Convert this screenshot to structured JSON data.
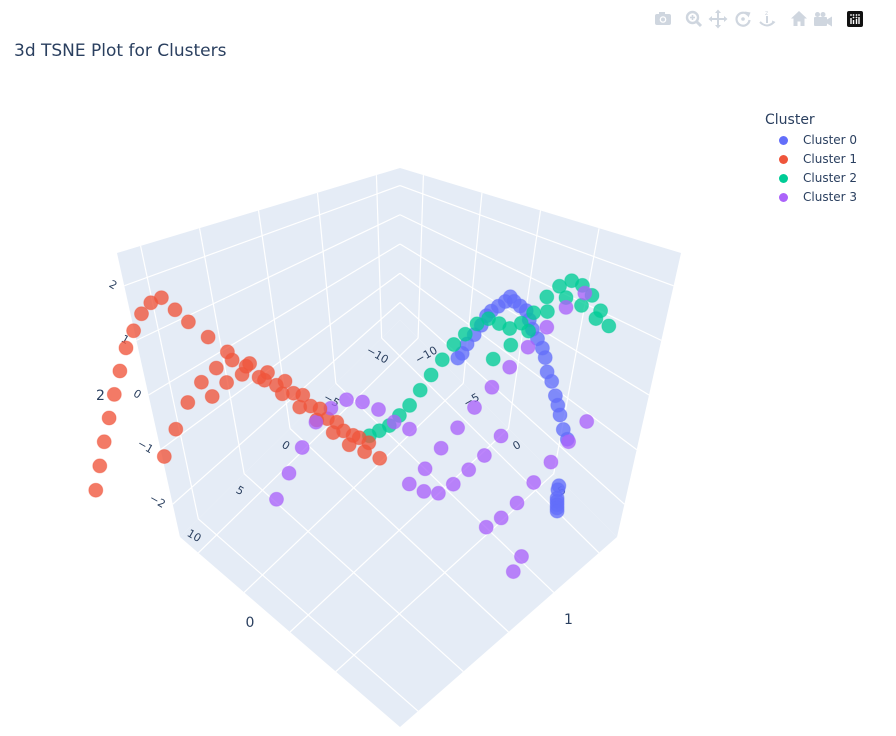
{
  "toolbar": {
    "buttons": [
      {
        "name": "download-plot-button",
        "icon": "camera-icon"
      },
      {
        "name": "zoom-button",
        "icon": "zoom-icon"
      },
      {
        "name": "pan-button",
        "icon": "pan-icon"
      },
      {
        "name": "orbit-rotation-button",
        "icon": "orbit-icon"
      },
      {
        "name": "turntable-rotation-button",
        "icon": "turntable-icon"
      },
      {
        "name": "reset-camera-button",
        "icon": "home-icon"
      },
      {
        "name": "save-camera-button",
        "icon": "camera-video-icon"
      },
      {
        "name": "plotly-logo-button",
        "icon": "plotly-logo-icon"
      }
    ]
  },
  "chart_data": {
    "type": "scatter3d",
    "title": "3d TSNE Plot for Clusters",
    "axes": {
      "x": {
        "title": "0",
        "ticks": [
          -10,
          -5,
          0,
          5,
          10
        ]
      },
      "y": {
        "title": "1",
        "ticks": [
          -10,
          -5,
          0,
          5
        ]
      },
      "z": {
        "title": "2",
        "ticks": [
          -2,
          -1,
          0,
          1,
          2
        ]
      }
    },
    "legend": {
      "title": "Cluster",
      "position": "top-right"
    },
    "series": [
      {
        "name": "Cluster 0",
        "color": "#636efa",
        "x": [
          -11.8,
          -11.5,
          -11.2,
          -11,
          -10.8,
          -10.5,
          -10.2,
          -10,
          -9.8,
          -9.5,
          -9.2,
          -9,
          -8.8,
          -8.5,
          -8.2,
          -8,
          -7.8,
          -7.5,
          -7.2,
          -7,
          -6.8,
          -6.5,
          -6.2,
          -6,
          -5.8,
          -9.5,
          -9.2,
          -9,
          -8.8,
          -8.6,
          -8.4,
          -8.2
        ],
        "y": [
          5.8,
          5.5,
          5.2,
          5,
          4.8,
          4.5,
          4.2,
          4,
          3.8,
          3.5,
          3.2,
          3,
          2.8,
          2.5,
          2.2,
          2,
          1.8,
          1.5,
          1.2,
          1,
          0.8,
          0.5,
          0.2,
          0,
          -0.2,
          7.5,
          7.7,
          7.9,
          8.1,
          8.3,
          8.5,
          8.7
        ],
        "z": [
          -1.7,
          -1.5,
          -1.2,
          -1,
          -0.8,
          -0.5,
          -0.3,
          0,
          0.2,
          0.4,
          0.6,
          0.8,
          1,
          1.1,
          1.2,
          1.3,
          1.2,
          1.1,
          1,
          0.9,
          0.7,
          0.5,
          0.3,
          0.1,
          0,
          -2,
          -2,
          -2.1,
          -2.1,
          -2.1,
          -2.1,
          -2.1
        ]
      },
      {
        "name": "Cluster 1",
        "color": "#ef553b",
        "x": [
          1,
          2,
          3,
          4,
          5,
          6,
          7,
          8,
          9,
          10,
          11,
          12,
          12.5,
          13,
          13.5,
          14,
          14.5,
          15,
          15.5,
          16,
          16.5,
          17,
          17.5,
          18,
          3,
          4,
          5,
          6,
          7,
          8,
          9,
          10,
          11,
          12,
          13,
          14,
          15,
          16,
          2,
          3,
          4,
          5,
          6,
          7,
          8,
          9,
          10,
          11
        ],
        "y": [
          -1,
          -1.5,
          -2,
          -2.5,
          -3,
          -3.5,
          -4,
          -4.5,
          -5,
          -5.5,
          -6,
          -6.5,
          -7,
          -7.5,
          -8,
          -8.5,
          -9,
          -9.5,
          -10,
          -10.5,
          -11,
          -11.5,
          -12,
          -12.5,
          0,
          -0.5,
          -1,
          -1.5,
          -2,
          -2.5,
          -3,
          -3.5,
          -4,
          -4.5,
          -5,
          -5.5,
          -6,
          -6.5,
          -2,
          -2.5,
          -3,
          -3.5,
          -4,
          -4.5,
          -5,
          -5.5,
          -6,
          -6.5
        ],
        "z": [
          -1.2,
          -1,
          -0.8,
          -0.5,
          -0.2,
          0.1,
          0.4,
          0.7,
          1,
          1.3,
          1.6,
          1.9,
          2.1,
          2.3,
          2.2,
          2,
          1.7,
          1.4,
          1,
          0.6,
          0.2,
          -0.2,
          -0.6,
          -1,
          -0.5,
          -0.3,
          0,
          0.3,
          0.6,
          0.9,
          1.1,
          1.3,
          1.4,
          1.3,
          1.1,
          0.8,
          0.4,
          0,
          -0.8,
          -0.6,
          -0.3,
          0,
          0.3,
          0.5,
          0.7,
          0.8,
          0.7,
          0.5
        ]
      },
      {
        "name": "Cluster 2",
        "color": "#00cc96",
        "x": [
          -10,
          -9.5,
          -9,
          -8.5,
          -8,
          -7.5,
          -7,
          -6.5,
          -6,
          -5.5,
          -5,
          -4.5,
          -4,
          -3.5,
          -3,
          -2.5,
          -2,
          -1.5,
          -1,
          -0.5,
          0,
          0.5,
          1,
          -8,
          -7,
          -6,
          -5,
          -4,
          -3,
          -2
        ],
        "y": [
          9,
          8.5,
          8,
          7.5,
          7,
          6.5,
          6,
          5.5,
          5,
          4.5,
          4,
          3.5,
          3,
          2.5,
          2,
          1.5,
          1,
          0.5,
          0,
          -0.5,
          -1,
          -1.5,
          -2,
          9.5,
          9,
          8.5,
          8,
          7.5,
          7,
          6.5
        ],
        "z": [
          1.2,
          1.5,
          1.8,
          2,
          2.1,
          2,
          1.8,
          1.5,
          1.3,
          1.2,
          1.3,
          1.4,
          1.3,
          1.1,
          0.9,
          0.6,
          0.3,
          0,
          -0.3,
          -0.5,
          -0.7,
          -0.8,
          -0.9,
          1.6,
          1.9,
          2.1,
          1.9,
          1.6,
          1.4,
          1.2
        ]
      },
      {
        "name": "Cluster 3",
        "color": "#ab63fa",
        "x": [
          -6,
          -5,
          -4,
          -3,
          -2,
          -1,
          0,
          1,
          2,
          3,
          -4,
          -3,
          -2,
          -1,
          0,
          1,
          2,
          -7,
          -6,
          -5,
          -4,
          -3,
          -2,
          -1,
          0,
          1,
          2,
          3,
          4,
          5,
          6,
          7,
          8,
          9,
          -3,
          -2
        ],
        "y": [
          10,
          9.5,
          9,
          8.5,
          8,
          7.5,
          7,
          6.5,
          6,
          5.5,
          6,
          5.5,
          5,
          4.5,
          4,
          3.5,
          3,
          11,
          10.5,
          10,
          9.5,
          9,
          8.5,
          8,
          1,
          0.5,
          0,
          -0.5,
          -1,
          -1.5,
          -2,
          -2.5,
          -3,
          -3.5,
          10,
          10.2
        ],
        "z": [
          2.3,
          2.1,
          1.8,
          1.5,
          1.2,
          0.9,
          0.6,
          0.3,
          0,
          -0.3,
          -0.5,
          -0.8,
          -1,
          -1.2,
          -1.3,
          -1.2,
          -1,
          0,
          -0.3,
          -0.6,
          -0.9,
          -1.2,
          -1.4,
          -1.5,
          -0.5,
          -0.3,
          0,
          0.2,
          0.3,
          0.2,
          0,
          -0.4,
          -0.8,
          -1.2,
          -2,
          -2.1
        ]
      }
    ]
  }
}
